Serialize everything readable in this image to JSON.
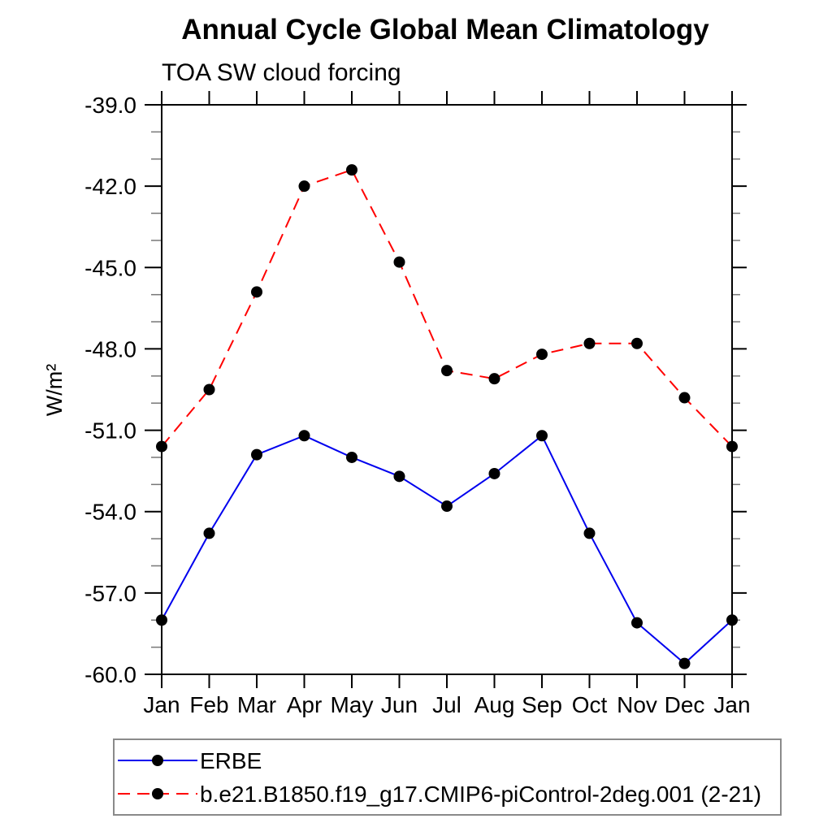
{
  "title": "Annual Cycle Global Mean Climatology",
  "subtitle": "TOA SW cloud forcing",
  "ylabel": "W/m²",
  "chart_data": {
    "type": "line",
    "title": "Annual Cycle Global Mean Climatology",
    "subtitle": "TOA SW cloud forcing",
    "ylabel": "W/m²",
    "categories": [
      "Jan",
      "Feb",
      "Mar",
      "Apr",
      "May",
      "Jun",
      "Jul",
      "Aug",
      "Sep",
      "Oct",
      "Nov",
      "Dec",
      "Jan"
    ],
    "series": [
      {
        "name": "ERBE",
        "color": "#0000ee",
        "line_style": "solid",
        "marker": "circle",
        "marker_color": "#000000",
        "values": [
          -58.0,
          -54.8,
          -51.9,
          -51.2,
          -52.0,
          -52.7,
          -53.8,
          -52.6,
          -51.2,
          -54.8,
          -58.1,
          -59.6,
          -58.0
        ]
      },
      {
        "name": "b.e21.B1850.f19_g17.CMIP6-piControl-2deg.001 (2-21)",
        "color": "#ff0000",
        "line_style": "dashed",
        "marker": "circle",
        "marker_color": "#000000",
        "values": [
          -51.6,
          -49.5,
          -45.9,
          -42.0,
          -41.4,
          -44.8,
          -48.8,
          -49.1,
          -48.2,
          -47.8,
          -47.8,
          -49.8,
          -51.6
        ]
      }
    ],
    "ylim": [
      -60.0,
      -39.0
    ],
    "y_major_tick_labels": [
      "-39.0",
      "-42.0",
      "-45.0",
      "-48.0",
      "-51.0",
      "-54.0",
      "-57.0",
      "-60.0"
    ],
    "y_major_step": 3.0,
    "y_minor_step": 1.0,
    "grid": false,
    "legend_position": "bottom-left-box"
  }
}
